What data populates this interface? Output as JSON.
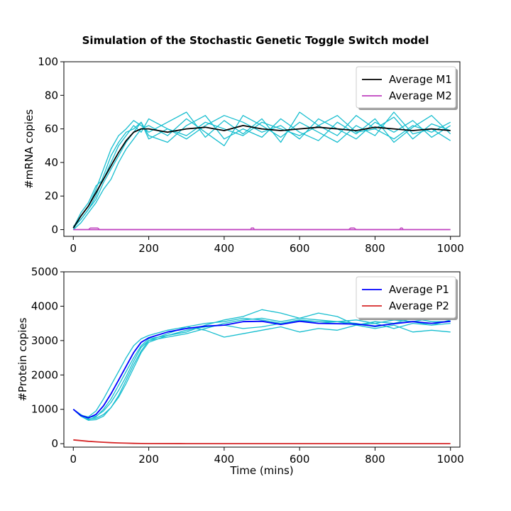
{
  "figure": {
    "title": "Simulation of the Stochastic Genetic Toggle Switch model"
  },
  "chart_data": [
    {
      "type": "line",
      "title": "Simulation of the Stochastic Genetic Toggle Switch model",
      "xlabel": "",
      "ylabel": "#mRNA copies",
      "xlim": [
        -25,
        1025
      ],
      "ylim": [
        -4,
        100
      ],
      "xticks": [
        0,
        200,
        400,
        600,
        800,
        1000
      ],
      "yticks": [
        0,
        20,
        40,
        60,
        80,
        100
      ],
      "grid": false,
      "legend": "top-right",
      "series": [
        {
          "name": "Average M1",
          "color": "#000000",
          "x": [
            0,
            20,
            40,
            60,
            80,
            100,
            120,
            140,
            160,
            180,
            200,
            250,
            300,
            350,
            400,
            450,
            500,
            550,
            600,
            650,
            700,
            750,
            800,
            850,
            900,
            950,
            1000
          ],
          "values": [
            1,
            8,
            14,
            22,
            30,
            38,
            46,
            53,
            58,
            60,
            60,
            58,
            60,
            61,
            59,
            62,
            60,
            59,
            60,
            61,
            60,
            59,
            61,
            60,
            59,
            60,
            59
          ]
        },
        {
          "name": "Average M2",
          "color": "#bf40bf",
          "x": [
            0,
            100,
            200,
            300,
            400,
            500,
            600,
            700,
            800,
            900,
            1000
          ],
          "values": [
            0,
            0,
            0,
            0,
            0,
            0,
            0,
            0,
            0,
            0,
            0
          ]
        },
        {
          "color": "#17becf",
          "x": [
            0,
            20,
            40,
            60,
            80,
            100,
            120,
            140,
            160,
            180,
            200,
            250,
            300,
            350,
            400,
            450,
            500,
            550,
            600,
            650,
            700,
            750,
            800,
            850,
            900,
            950,
            1000
          ],
          "values": [
            0,
            8,
            14,
            24,
            36,
            48,
            56,
            60,
            65,
            62,
            58,
            64,
            70,
            55,
            65,
            57,
            66,
            52,
            70,
            62,
            56,
            68,
            60,
            67,
            54,
            63,
            59
          ]
        },
        {
          "color": "#17becf",
          "x": [
            0,
            20,
            40,
            60,
            80,
            100,
            120,
            140,
            160,
            180,
            200,
            250,
            300,
            350,
            400,
            450,
            500,
            550,
            600,
            650,
            700,
            750,
            800,
            850,
            900,
            950,
            1000
          ],
          "values": [
            2,
            6,
            12,
            18,
            28,
            36,
            44,
            52,
            58,
            64,
            56,
            52,
            62,
            68,
            54,
            60,
            55,
            66,
            58,
            53,
            64,
            57,
            66,
            52,
            61,
            68,
            57
          ]
        },
        {
          "color": "#17becf",
          "x": [
            0,
            20,
            40,
            60,
            80,
            100,
            120,
            140,
            160,
            180,
            200,
            250,
            300,
            350,
            400,
            450,
            500,
            550,
            600,
            650,
            700,
            750,
            800,
            850,
            900,
            950,
            1000
          ],
          "values": [
            1,
            10,
            16,
            26,
            30,
            40,
            50,
            56,
            62,
            58,
            66,
            60,
            54,
            62,
            68,
            64,
            58,
            62,
            54,
            66,
            60,
            54,
            64,
            58,
            65,
            55,
            62
          ]
        },
        {
          "color": "#17becf",
          "x": [
            0,
            20,
            40,
            60,
            80,
            100,
            120,
            140,
            160,
            180,
            200,
            250,
            300,
            350,
            400,
            450,
            500,
            550,
            600,
            650,
            700,
            750,
            800,
            850,
            900,
            950,
            1000
          ],
          "values": [
            0,
            4,
            10,
            16,
            24,
            30,
            40,
            48,
            54,
            60,
            62,
            56,
            66,
            58,
            50,
            68,
            62,
            55,
            64,
            58,
            52,
            62,
            56,
            70,
            57,
            60,
            53
          ]
        },
        {
          "color": "#17becf",
          "x": [
            0,
            20,
            40,
            60,
            80,
            100,
            120,
            140,
            160,
            180,
            200,
            250,
            300,
            350,
            400,
            450,
            500,
            550,
            600,
            650,
            700,
            750,
            800,
            850,
            900,
            950,
            1000
          ],
          "values": [
            1,
            6,
            12,
            20,
            32,
            44,
            52,
            58,
            60,
            64,
            54,
            60,
            56,
            64,
            60,
            56,
            64,
            60,
            56,
            62,
            68,
            58,
            60,
            54,
            62,
            58,
            64
          ]
        },
        {
          "color": "#bf40bf",
          "x": [
            40,
            45,
            50,
            55,
            60,
            65,
            70,
            470,
            472,
            478,
            480,
            730,
            735,
            745,
            750,
            865,
            868,
            872,
            875
          ],
          "values": [
            0,
            1,
            1,
            1,
            1,
            1,
            0,
            0,
            1,
            1,
            0,
            0,
            1,
            1,
            0,
            0,
            1,
            1,
            0
          ]
        }
      ]
    },
    {
      "type": "line",
      "xlabel": "Time (mins)",
      "ylabel": "#Protein copies",
      "xlim": [
        -25,
        1025
      ],
      "ylim": [
        -100,
        5000
      ],
      "xticks": [
        0,
        200,
        400,
        600,
        800,
        1000
      ],
      "yticks": [
        0,
        1000,
        2000,
        3000,
        4000,
        5000
      ],
      "grid": false,
      "legend": "top-right",
      "series": [
        {
          "name": "Average P1",
          "color": "#0000ff",
          "x": [
            0,
            20,
            40,
            60,
            80,
            100,
            120,
            140,
            160,
            180,
            200,
            250,
            300,
            350,
            400,
            450,
            500,
            550,
            600,
            650,
            700,
            750,
            800,
            850,
            900,
            950,
            1000
          ],
          "values": [
            1000,
            820,
            750,
            850,
            1100,
            1450,
            1850,
            2250,
            2650,
            2950,
            3080,
            3250,
            3350,
            3420,
            3450,
            3550,
            3560,
            3470,
            3560,
            3500,
            3490,
            3480,
            3420,
            3490,
            3550,
            3500,
            3560
          ]
        },
        {
          "name": "Average P2",
          "color": "#d62728",
          "x": [
            0,
            20,
            40,
            60,
            80,
            100,
            120,
            140,
            160,
            180,
            200,
            300,
            400,
            500,
            600,
            700,
            800,
            900,
            1000
          ],
          "values": [
            110,
            90,
            70,
            55,
            42,
            30,
            22,
            15,
            10,
            6,
            4,
            2,
            1,
            1,
            1,
            1,
            1,
            1,
            1
          ]
        },
        {
          "color": "#17becf",
          "x": [
            0,
            20,
            40,
            60,
            80,
            100,
            120,
            140,
            160,
            180,
            200,
            250,
            300,
            350,
            400,
            450,
            500,
            550,
            600,
            650,
            700,
            750,
            800,
            850,
            900,
            950,
            1000
          ],
          "values": [
            1000,
            800,
            700,
            780,
            1000,
            1300,
            1700,
            2100,
            2500,
            2850,
            3050,
            3150,
            3250,
            3450,
            3600,
            3700,
            3900,
            3800,
            3650,
            3800,
            3700,
            3450,
            3500,
            3350,
            3500,
            3450,
            3600
          ]
        },
        {
          "color": "#17becf",
          "x": [
            0,
            20,
            40,
            60,
            80,
            100,
            120,
            140,
            160,
            180,
            200,
            250,
            300,
            350,
            400,
            450,
            500,
            550,
            600,
            650,
            700,
            750,
            800,
            850,
            900,
            950,
            1000
          ],
          "values": [
            1000,
            820,
            760,
            800,
            950,
            1200,
            1550,
            1950,
            2400,
            2800,
            3000,
            3200,
            3400,
            3300,
            3100,
            3200,
            3300,
            3400,
            3250,
            3350,
            3300,
            3450,
            3350,
            3450,
            3250,
            3300,
            3250
          ]
        },
        {
          "color": "#17becf",
          "x": [
            0,
            20,
            40,
            60,
            80,
            100,
            120,
            140,
            160,
            180,
            200,
            250,
            300,
            350,
            400,
            450,
            500,
            550,
            600,
            650,
            700,
            750,
            800,
            850,
            900,
            950,
            1000
          ],
          "values": [
            1000,
            850,
            720,
            740,
            850,
            1050,
            1350,
            1750,
            2200,
            2650,
            2950,
            3150,
            3300,
            3400,
            3450,
            3350,
            3400,
            3500,
            3600,
            3500,
            3550,
            3450,
            3550,
            3500,
            3650,
            3550,
            3550
          ]
        },
        {
          "color": "#17becf",
          "x": [
            0,
            20,
            40,
            60,
            80,
            100,
            120,
            140,
            160,
            180,
            200,
            250,
            300,
            350,
            400,
            450,
            500,
            550,
            600,
            650,
            700,
            750,
            800,
            850,
            900,
            950,
            1000
          ],
          "values": [
            1000,
            830,
            780,
            950,
            1300,
            1700,
            2100,
            2500,
            2850,
            3050,
            3150,
            3300,
            3400,
            3500,
            3550,
            3650,
            3600,
            3500,
            3600,
            3550,
            3550,
            3600,
            3500,
            3600,
            3550,
            3650,
            3700
          ]
        },
        {
          "color": "#17becf",
          "x": [
            0,
            20,
            40,
            60,
            80,
            100,
            120,
            140,
            160,
            180,
            200,
            250,
            300,
            350,
            400,
            450,
            500,
            550,
            600,
            650,
            700,
            750,
            800,
            850,
            900,
            950,
            1000
          ],
          "values": [
            1000,
            800,
            680,
            700,
            800,
            1050,
            1400,
            1850,
            2300,
            2700,
            3000,
            3100,
            3200,
            3350,
            3500,
            3600,
            3650,
            3550,
            3650,
            3600,
            3550,
            3500,
            3400,
            3500,
            3550,
            3450,
            3500
          ]
        }
      ]
    }
  ]
}
